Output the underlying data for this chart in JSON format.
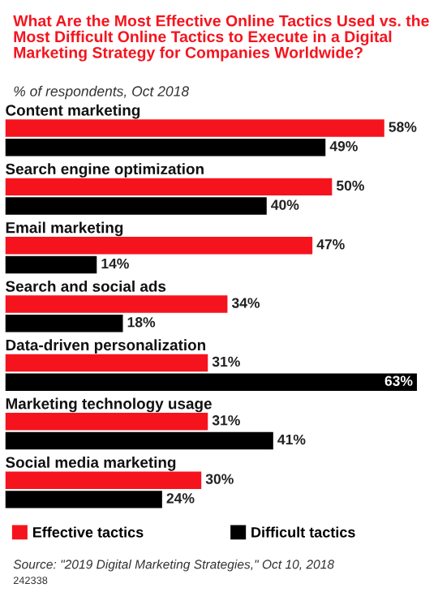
{
  "chart_data": {
    "type": "bar",
    "orientation": "horizontal",
    "title": "What Are the Most Effective Online Tactics Used vs. the Most Difficult Online Tactics to Execute in a Digital Marketing Strategy for Companies Worldwide?",
    "subtitle": "% of respondents, Oct 2018",
    "categories": [
      "Content marketing",
      "Search engine optimization",
      "Email marketing",
      "Search and social ads",
      "Data-driven personalization",
      "Marketing technology usage",
      "Social media marketing"
    ],
    "series": [
      {
        "name": "Effective tactics",
        "color": "#f5141e",
        "values": [
          58,
          50,
          47,
          34,
          31,
          31,
          30
        ],
        "value_labels": [
          "58%",
          "50%",
          "47%",
          "34%",
          "31%",
          "31%",
          "30%"
        ]
      },
      {
        "name": "Difficult tactics",
        "color": "#000000",
        "values": [
          49,
          40,
          14,
          18,
          63,
          41,
          24
        ],
        "value_labels": [
          "49%",
          "40%",
          "14%",
          "18%",
          "63%",
          "41%",
          "24%"
        ]
      }
    ],
    "legend": "bottom",
    "annotations": [
      "Source: \"2019 Digital Marketing Strategies,\" Oct 10, 2018",
      "242338"
    ]
  }
}
